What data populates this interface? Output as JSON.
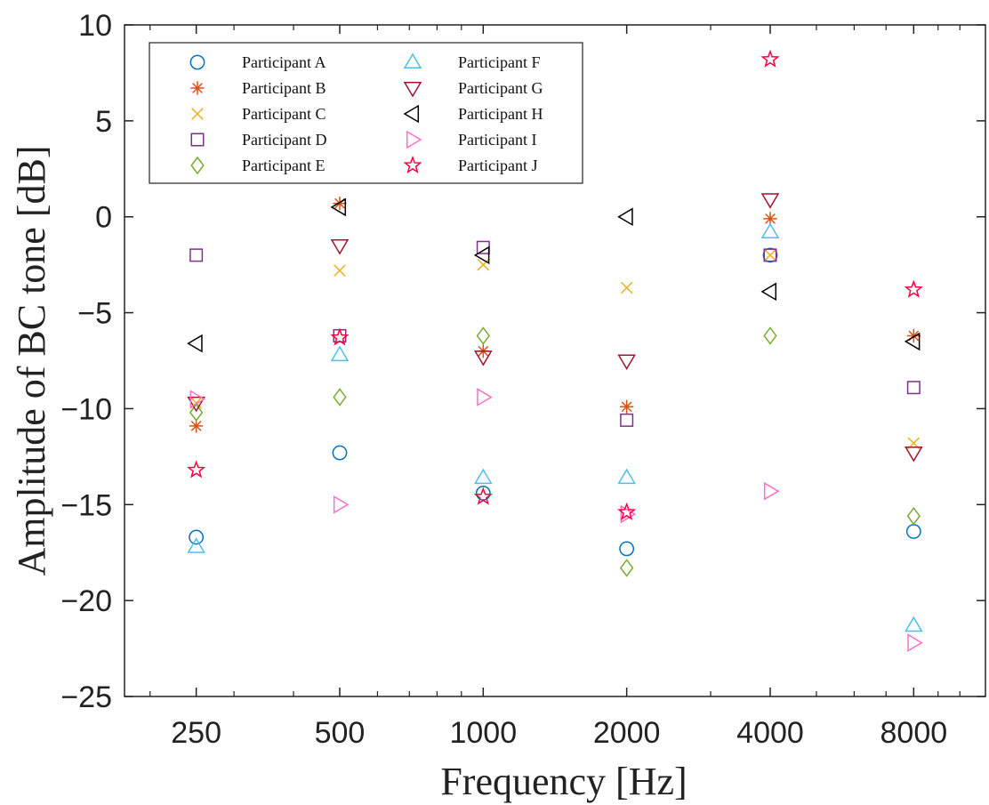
{
  "chart_data": {
    "type": "scatter",
    "xlabel": "Frequency [Hz]",
    "ylabel": "Amplitude of BC tone [dB]",
    "x_scale": "log2",
    "xlim": [
      176.8,
      11314
    ],
    "ylim": [
      -25,
      10
    ],
    "x_ticks": [
      250,
      500,
      1000,
      2000,
      4000,
      8000
    ],
    "x_tick_labels": [
      "250",
      "500",
      "1000",
      "2000",
      "4000",
      "8000"
    ],
    "y_ticks": [
      -25,
      -20,
      -15,
      -10,
      -5,
      0,
      5,
      10
    ],
    "y_tick_labels": [
      "−25",
      "−20",
      "−15",
      "−10",
      "−5",
      "0",
      "5",
      "10"
    ],
    "grid": false,
    "legend_position": "top-left",
    "series": [
      {
        "name": "Participant A",
        "marker": "circle",
        "color": "#0072BD",
        "x": [
          250,
          500,
          1000,
          2000,
          4000,
          8000
        ],
        "y": [
          -16.7,
          -12.3,
          -14.4,
          -17.3,
          -2.0,
          -16.4
        ]
      },
      {
        "name": "Participant B",
        "marker": "asterisk",
        "color": "#D95319",
        "x": [
          250,
          500,
          1000,
          2000,
          4000,
          8000
        ],
        "y": [
          -10.9,
          0.7,
          -7.0,
          -9.9,
          -0.1,
          -6.2
        ]
      },
      {
        "name": "Participant C",
        "marker": "x",
        "color": "#EDB120",
        "x": [
          250,
          500,
          1000,
          2000,
          4000,
          8000
        ],
        "y": [
          -9.7,
          -2.8,
          -2.5,
          -3.7,
          -2.0,
          -11.8
        ]
      },
      {
        "name": "Participant D",
        "marker": "square",
        "color": "#7E2F8E",
        "x": [
          250,
          500,
          1000,
          2000,
          4000,
          8000
        ],
        "y": [
          -2.0,
          -6.2,
          -1.6,
          -10.6,
          -2.0,
          -8.9
        ]
      },
      {
        "name": "Participant E",
        "marker": "diamond",
        "color": "#77AC30",
        "x": [
          250,
          500,
          1000,
          2000,
          4000,
          8000
        ],
        "y": [
          -10.2,
          -9.4,
          -6.2,
          -18.3,
          -6.2,
          -15.6
        ]
      },
      {
        "name": "Participant F",
        "marker": "triangle-up",
        "color": "#4DBEEE",
        "x": [
          250,
          500,
          1000,
          2000,
          4000,
          8000
        ],
        "y": [
          -17.2,
          -7.2,
          -13.6,
          -13.6,
          -0.8,
          -21.3
        ]
      },
      {
        "name": "Participant G",
        "marker": "triangle-down",
        "color": "#A2142F",
        "x": [
          250,
          500,
          1000,
          2000,
          4000,
          8000
        ],
        "y": [
          -9.7,
          -1.5,
          -7.3,
          -7.5,
          0.9,
          -12.3
        ]
      },
      {
        "name": "Participant H",
        "marker": "triangle-left",
        "color": "#000000",
        "x": [
          250,
          500,
          1000,
          2000,
          4000,
          8000
        ],
        "y": [
          -6.6,
          0.5,
          -2.0,
          0.0,
          -3.9,
          -6.5
        ]
      },
      {
        "name": "Participant I",
        "marker": "triangle-right",
        "color": "#FF6EC7",
        "x": [
          250,
          500,
          1000,
          2000,
          4000,
          8000
        ],
        "y": [
          -9.5,
          -15.0,
          -9.4,
          -15.5,
          -14.3,
          -22.2
        ]
      },
      {
        "name": "Participant J",
        "marker": "pentagram",
        "color": "#FF0040",
        "x": [
          250,
          500,
          1000,
          2000,
          4000,
          8000
        ],
        "y": [
          -13.2,
          -6.3,
          -14.6,
          -15.4,
          8.2,
          -3.8
        ]
      }
    ]
  }
}
